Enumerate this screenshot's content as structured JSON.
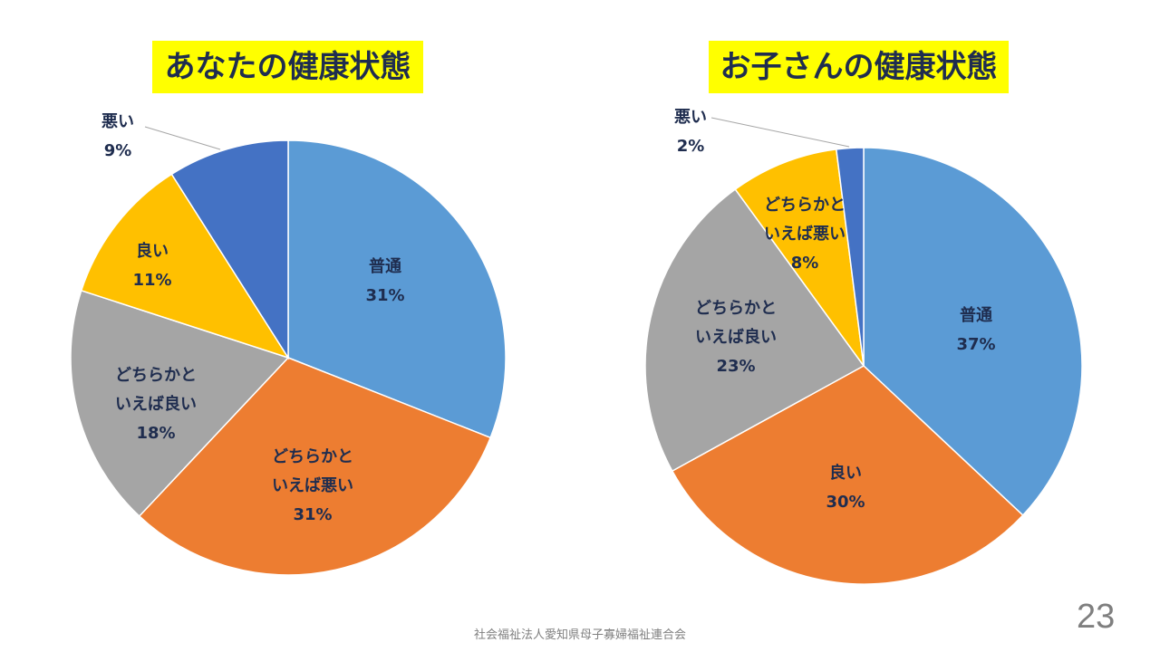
{
  "chart_data": [
    {
      "type": "pie",
      "title": "あなたの健康状態",
      "slices": [
        {
          "label": "普通",
          "value": 31,
          "color": "#5B9BD5"
        },
        {
          "label": "どちらかといえば悪い",
          "value": 31,
          "color": "#ED7D31"
        },
        {
          "label": "どちらかといえば良い",
          "value": 18,
          "color": "#A5A5A5"
        },
        {
          "label": "良い",
          "value": 11,
          "color": "#FFC000"
        },
        {
          "label": "悪い",
          "value": 9,
          "color": "#4472C4"
        }
      ],
      "label_lines": [
        [
          "普通",
          "31%"
        ],
        [
          "どちらかと",
          "いえば悪い",
          "31%"
        ],
        [
          "どちらかと",
          "いえば良い",
          "18%"
        ],
        [
          "良い",
          "11%"
        ],
        [
          "悪い",
          "9%"
        ]
      ]
    },
    {
      "type": "pie",
      "title": "お子さんの健康状態",
      "slices": [
        {
          "label": "普通",
          "value": 37,
          "color": "#5B9BD5"
        },
        {
          "label": "良い",
          "value": 30,
          "color": "#ED7D31"
        },
        {
          "label": "どちらかといえば良い",
          "value": 23,
          "color": "#A5A5A5"
        },
        {
          "label": "どちらかといえば悪い",
          "value": 8,
          "color": "#FFC000"
        },
        {
          "label": "悪い",
          "value": 2,
          "color": "#4472C4"
        }
      ],
      "label_lines": [
        [
          "普通",
          "37%"
        ],
        [
          "良い",
          "30%"
        ],
        [
          "どちらかと",
          "いえば良い",
          "23%"
        ],
        [
          "どちらかと",
          "いえば悪い",
          "8%"
        ],
        [
          "悪い",
          "2%"
        ]
      ]
    }
  ],
  "footer": "社会福祉法人愛知県母子寡婦福祉連合会",
  "page_number": "23"
}
